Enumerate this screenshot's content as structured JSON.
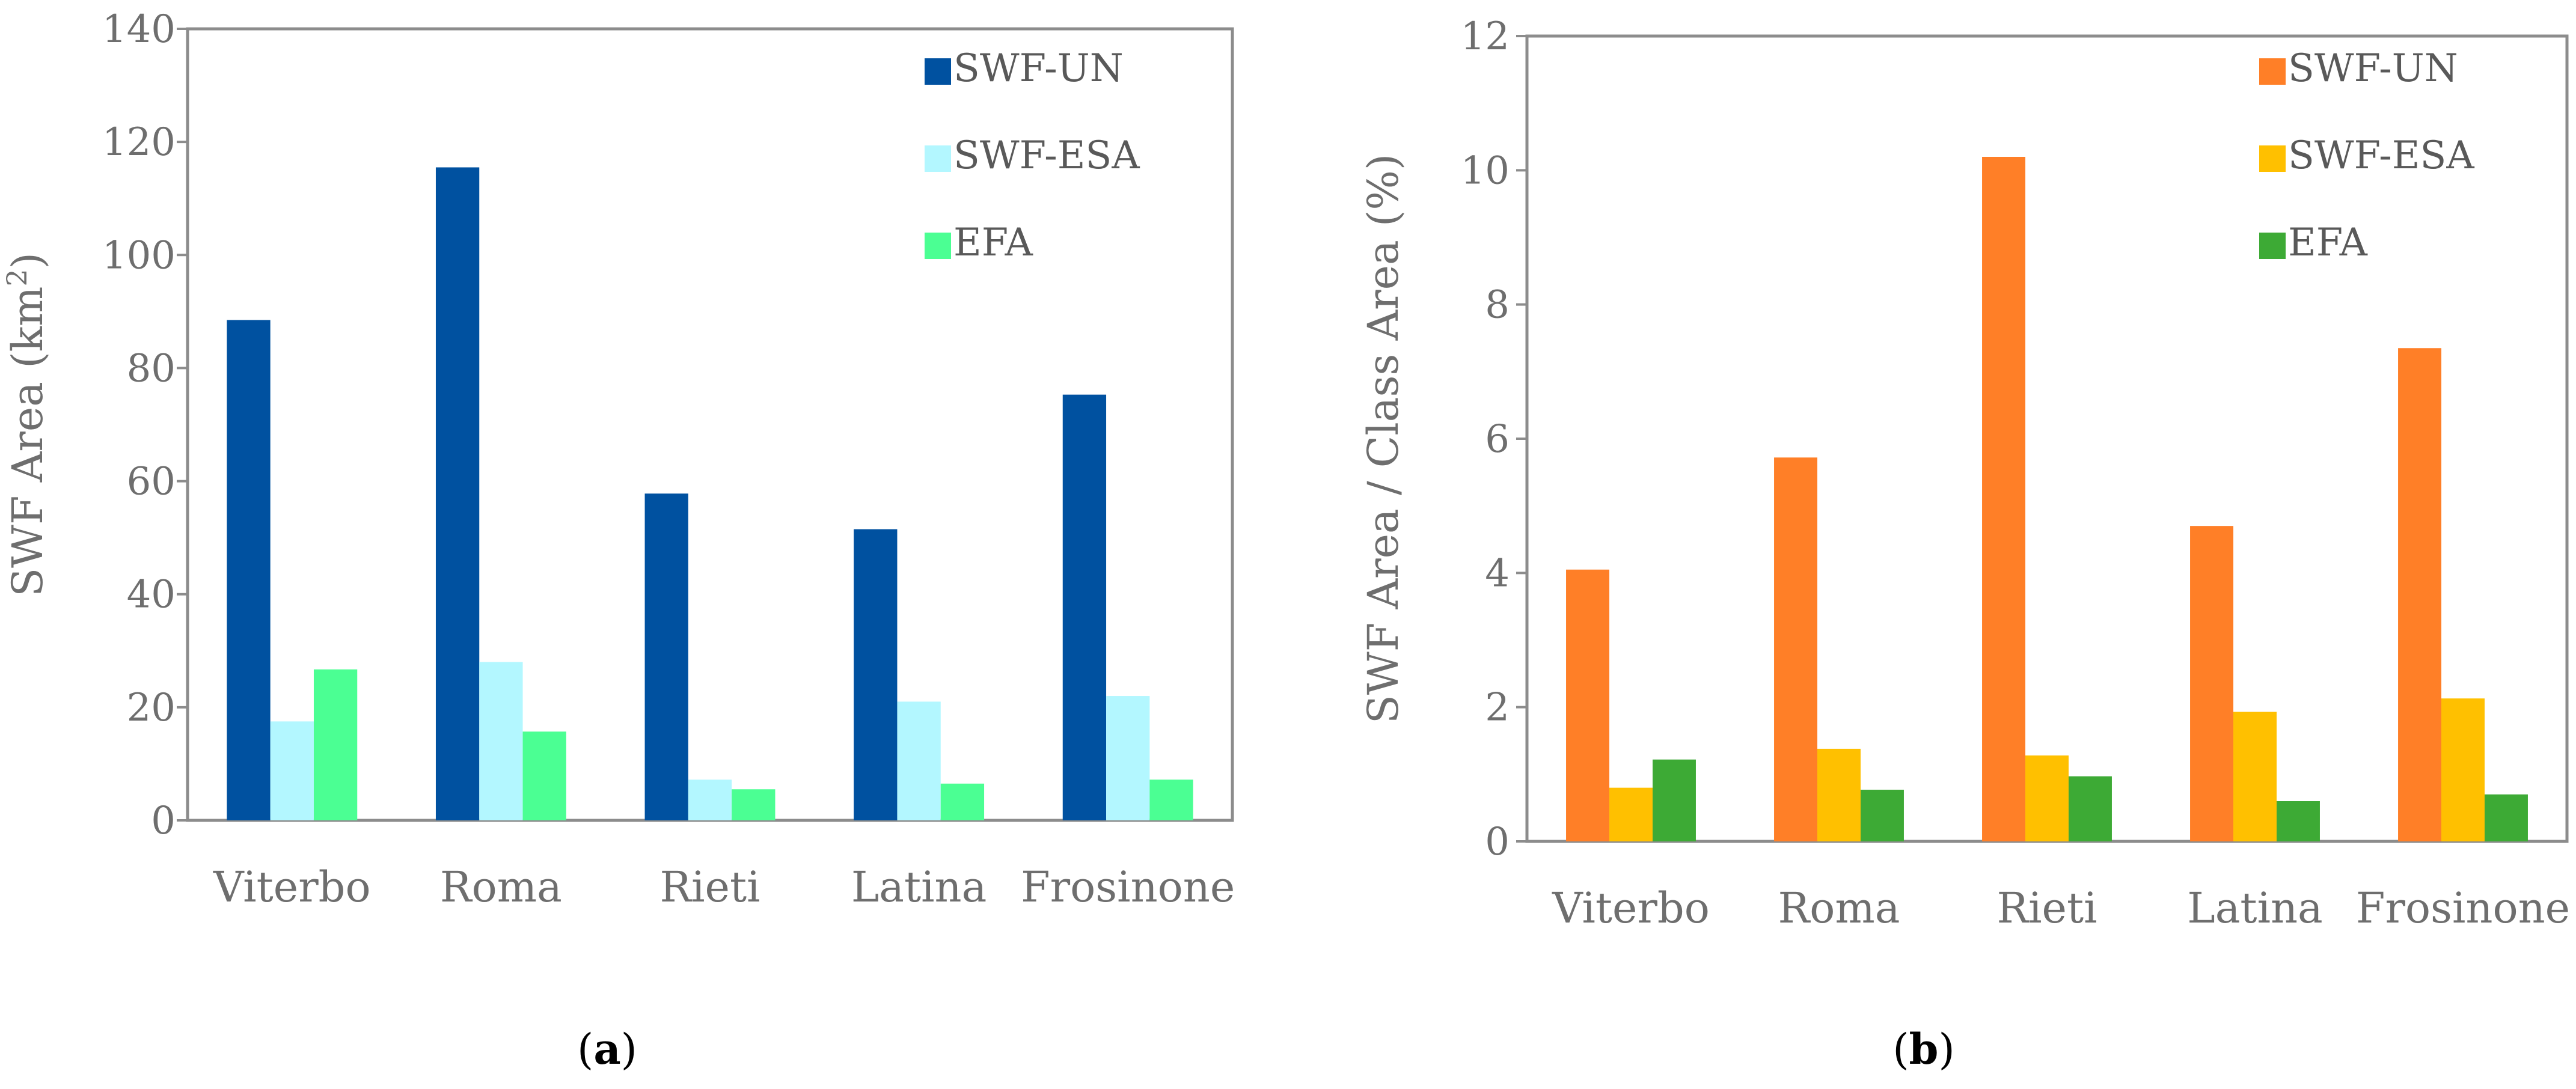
{
  "chart_data": [
    {
      "type": "bar",
      "panel_label": {
        "open": "(",
        "letter": "a",
        "close": ")"
      },
      "categories": [
        "Viterbo",
        "Roma",
        "Rieti",
        "Latina",
        "Frosinone"
      ],
      "ylabel_main": "SWF Area (km",
      "ylabel_sup": "2",
      "ylabel_tail": ")",
      "ylim": [
        0,
        140
      ],
      "yticks": [
        0,
        20,
        40,
        60,
        80,
        100,
        120,
        140
      ],
      "legend_position": "top-right",
      "series": [
        {
          "name": "SWF-UN",
          "color": "#0051A0",
          "values": [
            88.5,
            115.5,
            57.8,
            51.5,
            75.3
          ]
        },
        {
          "name": "SWF-ESA",
          "color": "#B3F7FF",
          "values": [
            17.5,
            28.0,
            7.2,
            21.0,
            22.0
          ]
        },
        {
          "name": "EFA",
          "color": "#4BFF93",
          "values": [
            26.7,
            15.7,
            5.5,
            6.5,
            7.2
          ]
        }
      ]
    },
    {
      "type": "bar",
      "panel_label": {
        "open": "(",
        "letter": "b",
        "close": ")"
      },
      "categories": [
        "Viterbo",
        "Roma",
        "Rieti",
        "Latina",
        "Frosinone"
      ],
      "ylabel": "SWF Area / Class Area (%)",
      "ylim": [
        0,
        12
      ],
      "yticks": [
        0,
        2,
        4,
        6,
        8,
        10,
        12
      ],
      "legend_position": "top-right",
      "series": [
        {
          "name": "SWF-UN",
          "color": "#FF7F27",
          "values": [
            4.05,
            5.72,
            10.2,
            4.7,
            7.35
          ]
        },
        {
          "name": "SWF-ESA",
          "color": "#FFC000",
          "values": [
            0.8,
            1.38,
            1.28,
            1.93,
            2.13
          ]
        },
        {
          "name": "EFA",
          "color": "#3DAA35",
          "values": [
            1.22,
            0.77,
            0.97,
            0.6,
            0.7
          ]
        }
      ]
    }
  ]
}
